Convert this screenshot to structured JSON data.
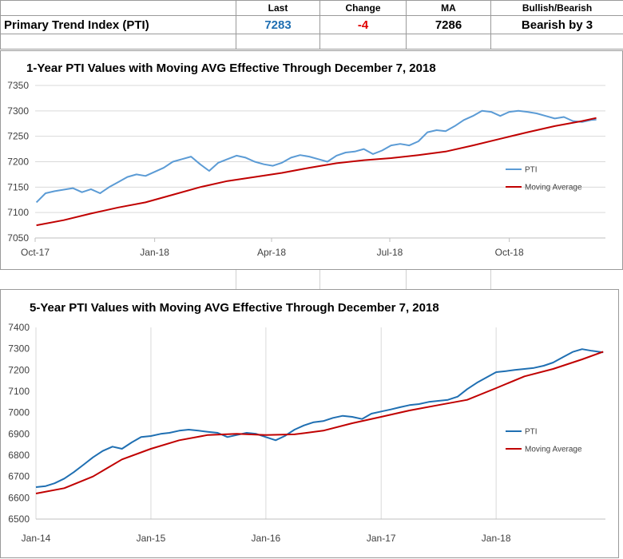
{
  "summary_table": {
    "headers": [
      "",
      "Last",
      "Change",
      "MA",
      "Bullish/Bearish"
    ],
    "row_label": "Primary Trend Index (PTI)",
    "last": "7283",
    "change": "-4",
    "ma": "7286",
    "signal": "Bearish by 3",
    "colors": {
      "last": "#1f6fb2",
      "change": "#e00000"
    }
  },
  "chart_data": [
    {
      "type": "line",
      "title": "1-Year PTI Values with Moving AVG Effective Through December 7, 2018",
      "x_ticks": [
        "Oct-17",
        "Jan-18",
        "Apr-18",
        "Jul-18",
        "Oct-18"
      ],
      "x_tick_dates": [
        "2017-10-01",
        "2018-01-01",
        "2018-04-01",
        "2018-07-01",
        "2018-10-01"
      ],
      "xlim": [
        "2017-10-01",
        "2018-12-14"
      ],
      "ylim": [
        7050,
        7350
      ],
      "y_ticks": [
        7050,
        7100,
        7150,
        7200,
        7250,
        7300,
        7350
      ],
      "grid": "horizontal",
      "legend": "right",
      "series": [
        {
          "name": "PTI",
          "color": "#5b9bd5",
          "points": [
            [
              "2017-10-02",
              7120
            ],
            [
              "2017-10-09",
              7138
            ],
            [
              "2017-10-16",
              7142
            ],
            [
              "2017-10-23",
              7145
            ],
            [
              "2017-10-30",
              7148
            ],
            [
              "2017-11-06",
              7140
            ],
            [
              "2017-11-13",
              7146
            ],
            [
              "2017-11-20",
              7138
            ],
            [
              "2017-11-27",
              7150
            ],
            [
              "2017-12-04",
              7160
            ],
            [
              "2017-12-11",
              7170
            ],
            [
              "2017-12-18",
              7175
            ],
            [
              "2017-12-25",
              7172
            ],
            [
              "2018-01-01",
              7180
            ],
            [
              "2018-01-08",
              7188
            ],
            [
              "2018-01-15",
              7200
            ],
            [
              "2018-01-22",
              7205
            ],
            [
              "2018-01-29",
              7210
            ],
            [
              "2018-02-05",
              7195
            ],
            [
              "2018-02-12",
              7182
            ],
            [
              "2018-02-19",
              7198
            ],
            [
              "2018-02-26",
              7205
            ],
            [
              "2018-03-05",
              7212
            ],
            [
              "2018-03-12",
              7208
            ],
            [
              "2018-03-19",
              7200
            ],
            [
              "2018-03-26",
              7195
            ],
            [
              "2018-04-02",
              7192
            ],
            [
              "2018-04-09",
              7198
            ],
            [
              "2018-04-16",
              7208
            ],
            [
              "2018-04-23",
              7213
            ],
            [
              "2018-04-30",
              7210
            ],
            [
              "2018-05-07",
              7205
            ],
            [
              "2018-05-14",
              7200
            ],
            [
              "2018-05-21",
              7212
            ],
            [
              "2018-05-28",
              7218
            ],
            [
              "2018-06-04",
              7220
            ],
            [
              "2018-06-11",
              7225
            ],
            [
              "2018-06-18",
              7215
            ],
            [
              "2018-06-25",
              7222
            ],
            [
              "2018-07-02",
              7232
            ],
            [
              "2018-07-09",
              7235
            ],
            [
              "2018-07-16",
              7232
            ],
            [
              "2018-07-23",
              7240
            ],
            [
              "2018-07-30",
              7258
            ],
            [
              "2018-08-06",
              7262
            ],
            [
              "2018-08-13",
              7260
            ],
            [
              "2018-08-20",
              7270
            ],
            [
              "2018-08-27",
              7282
            ],
            [
              "2018-09-03",
              7290
            ],
            [
              "2018-09-10",
              7300
            ],
            [
              "2018-09-17",
              7298
            ],
            [
              "2018-09-24",
              7290
            ],
            [
              "2018-10-01",
              7298
            ],
            [
              "2018-10-08",
              7300
            ],
            [
              "2018-10-15",
              7298
            ],
            [
              "2018-10-22",
              7295
            ],
            [
              "2018-10-29",
              7290
            ],
            [
              "2018-11-05",
              7285
            ],
            [
              "2018-11-12",
              7288
            ],
            [
              "2018-11-19",
              7280
            ],
            [
              "2018-11-26",
              7278
            ],
            [
              "2018-12-03",
              7282
            ],
            [
              "2018-12-07",
              7283
            ]
          ]
        },
        {
          "name": "Moving Average",
          "color": "#c00000",
          "points": [
            [
              "2017-10-02",
              7075
            ],
            [
              "2017-10-23",
              7085
            ],
            [
              "2017-11-13",
              7098
            ],
            [
              "2017-12-04",
              7110
            ],
            [
              "2017-12-25",
              7120
            ],
            [
              "2018-01-15",
              7135
            ],
            [
              "2018-02-05",
              7150
            ],
            [
              "2018-02-26",
              7162
            ],
            [
              "2018-03-19",
              7170
            ],
            [
              "2018-04-09",
              7178
            ],
            [
              "2018-04-30",
              7188
            ],
            [
              "2018-05-21",
              7197
            ],
            [
              "2018-06-11",
              7203
            ],
            [
              "2018-07-02",
              7207
            ],
            [
              "2018-07-23",
              7213
            ],
            [
              "2018-08-13",
              7220
            ],
            [
              "2018-09-03",
              7232
            ],
            [
              "2018-09-24",
              7245
            ],
            [
              "2018-10-15",
              7258
            ],
            [
              "2018-11-05",
              7270
            ],
            [
              "2018-11-26",
              7280
            ],
            [
              "2018-12-07",
              7286
            ]
          ]
        }
      ]
    },
    {
      "type": "line",
      "title": "5-Year PTI Values with Moving AVG Effective Through December 7, 2018",
      "x_ticks": [
        "Jan-14",
        "Jan-15",
        "Jan-16",
        "Jan-17",
        "Jan-18"
      ],
      "x_tick_dates": [
        "2014-01-01",
        "2015-01-01",
        "2016-01-01",
        "2017-01-01",
        "2018-01-01"
      ],
      "xlim": [
        "2014-01-01",
        "2018-12-14"
      ],
      "ylim": [
        6500,
        7400
      ],
      "y_ticks": [
        6500,
        6600,
        6700,
        6800,
        6900,
        7000,
        7100,
        7200,
        7300,
        7400
      ],
      "grid": "vertical",
      "legend": "right",
      "series": [
        {
          "name": "PTI",
          "color": "#1f6fb2",
          "points": [
            [
              "2014-01-01",
              6650
            ],
            [
              "2014-02-01",
              6655
            ],
            [
              "2014-03-01",
              6668
            ],
            [
              "2014-04-01",
              6690
            ],
            [
              "2014-05-01",
              6720
            ],
            [
              "2014-06-01",
              6755
            ],
            [
              "2014-07-01",
              6790
            ],
            [
              "2014-08-01",
              6820
            ],
            [
              "2014-09-01",
              6840
            ],
            [
              "2014-10-01",
              6830
            ],
            [
              "2014-11-01",
              6860
            ],
            [
              "2014-12-01",
              6885
            ],
            [
              "2015-01-01",
              6890
            ],
            [
              "2015-02-01",
              6900
            ],
            [
              "2015-03-01",
              6905
            ],
            [
              "2015-04-01",
              6915
            ],
            [
              "2015-05-01",
              6920
            ],
            [
              "2015-06-01",
              6915
            ],
            [
              "2015-07-01",
              6910
            ],
            [
              "2015-08-01",
              6905
            ],
            [
              "2015-09-01",
              6885
            ],
            [
              "2015-10-01",
              6895
            ],
            [
              "2015-11-01",
              6905
            ],
            [
              "2015-12-01",
              6900
            ],
            [
              "2016-01-01",
              6885
            ],
            [
              "2016-02-01",
              6870
            ],
            [
              "2016-03-01",
              6890
            ],
            [
              "2016-04-01",
              6920
            ],
            [
              "2016-05-01",
              6940
            ],
            [
              "2016-06-01",
              6955
            ],
            [
              "2016-07-01",
              6960
            ],
            [
              "2016-08-01",
              6975
            ],
            [
              "2016-09-01",
              6985
            ],
            [
              "2016-10-01",
              6980
            ],
            [
              "2016-11-01",
              6970
            ],
            [
              "2016-12-01",
              6995
            ],
            [
              "2017-01-01",
              7005
            ],
            [
              "2017-02-01",
              7015
            ],
            [
              "2017-03-01",
              7025
            ],
            [
              "2017-04-01",
              7035
            ],
            [
              "2017-05-01",
              7040
            ],
            [
              "2017-06-01",
              7050
            ],
            [
              "2017-07-01",
              7055
            ],
            [
              "2017-08-01",
              7060
            ],
            [
              "2017-09-01",
              7075
            ],
            [
              "2017-10-01",
              7110
            ],
            [
              "2017-11-01",
              7140
            ],
            [
              "2017-12-01",
              7165
            ],
            [
              "2018-01-01",
              7190
            ],
            [
              "2018-02-01",
              7195
            ],
            [
              "2018-03-01",
              7200
            ],
            [
              "2018-04-01",
              7205
            ],
            [
              "2018-05-01",
              7210
            ],
            [
              "2018-06-01",
              7220
            ],
            [
              "2018-07-01",
              7235
            ],
            [
              "2018-08-01",
              7260
            ],
            [
              "2018-09-01",
              7285
            ],
            [
              "2018-10-01",
              7298
            ],
            [
              "2018-11-01",
              7290
            ],
            [
              "2018-12-07",
              7283
            ]
          ]
        },
        {
          "name": "Moving Average",
          "color": "#c00000",
          "points": [
            [
              "2014-01-01",
              6620
            ],
            [
              "2014-04-01",
              6645
            ],
            [
              "2014-07-01",
              6700
            ],
            [
              "2014-10-01",
              6780
            ],
            [
              "2015-01-01",
              6830
            ],
            [
              "2015-04-01",
              6870
            ],
            [
              "2015-07-01",
              6895
            ],
            [
              "2015-10-01",
              6900
            ],
            [
              "2016-01-01",
              6895
            ],
            [
              "2016-04-01",
              6898
            ],
            [
              "2016-07-01",
              6915
            ],
            [
              "2016-10-01",
              6950
            ],
            [
              "2017-01-01",
              6980
            ],
            [
              "2017-04-01",
              7010
            ],
            [
              "2017-07-01",
              7035
            ],
            [
              "2017-10-01",
              7060
            ],
            [
              "2018-01-01",
              7115
            ],
            [
              "2018-04-01",
              7170
            ],
            [
              "2018-07-01",
              7205
            ],
            [
              "2018-10-01",
              7250
            ],
            [
              "2018-12-07",
              7286
            ]
          ]
        }
      ]
    }
  ]
}
